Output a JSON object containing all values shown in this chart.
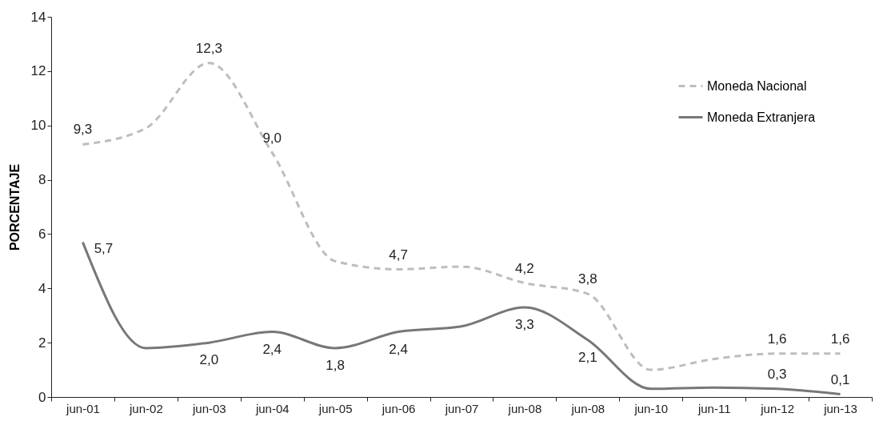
{
  "chart_data": {
    "type": "line",
    "ylabel": "PORCENTAJE",
    "categories": [
      "jun-01",
      "jun-02",
      "jun-03",
      "jun-04",
      "jun-05",
      "jun-06",
      "jun-07",
      "jun-08",
      "jun-08",
      "jun-10",
      "jun-11",
      "jun-12",
      "jun-13"
    ],
    "series": [
      {
        "name": "Moneda Nacional",
        "color": "#bdbdbd",
        "line_style": "dashed",
        "values": [
          9.3,
          9.9,
          12.3,
          9.0,
          5.0,
          4.7,
          4.8,
          4.2,
          3.8,
          1.0,
          1.4,
          1.6,
          1.6
        ],
        "value_labels": [
          "9,3",
          null,
          "12,3",
          "9,0",
          null,
          "4,7",
          null,
          "4,2",
          "3,8",
          null,
          null,
          "1,6",
          "1,6"
        ]
      },
      {
        "name": "Moneda Extranjera",
        "color": "#777777",
        "line_style": "solid",
        "values": [
          5.7,
          1.8,
          2.0,
          2.4,
          1.8,
          2.4,
          2.6,
          3.3,
          2.1,
          0.3,
          0.35,
          0.3,
          0.1
        ],
        "value_labels": [
          "5,7",
          null,
          "2,0",
          "2,4",
          "1,8",
          "2,4",
          null,
          "3,3",
          "2,1",
          null,
          null,
          "0,3",
          "0,1"
        ]
      }
    ],
    "ylim": [
      0,
      14
    ],
    "yticks": [
      0,
      2,
      4,
      6,
      8,
      10,
      12,
      14
    ],
    "legend": "top right",
    "grid": false
  }
}
